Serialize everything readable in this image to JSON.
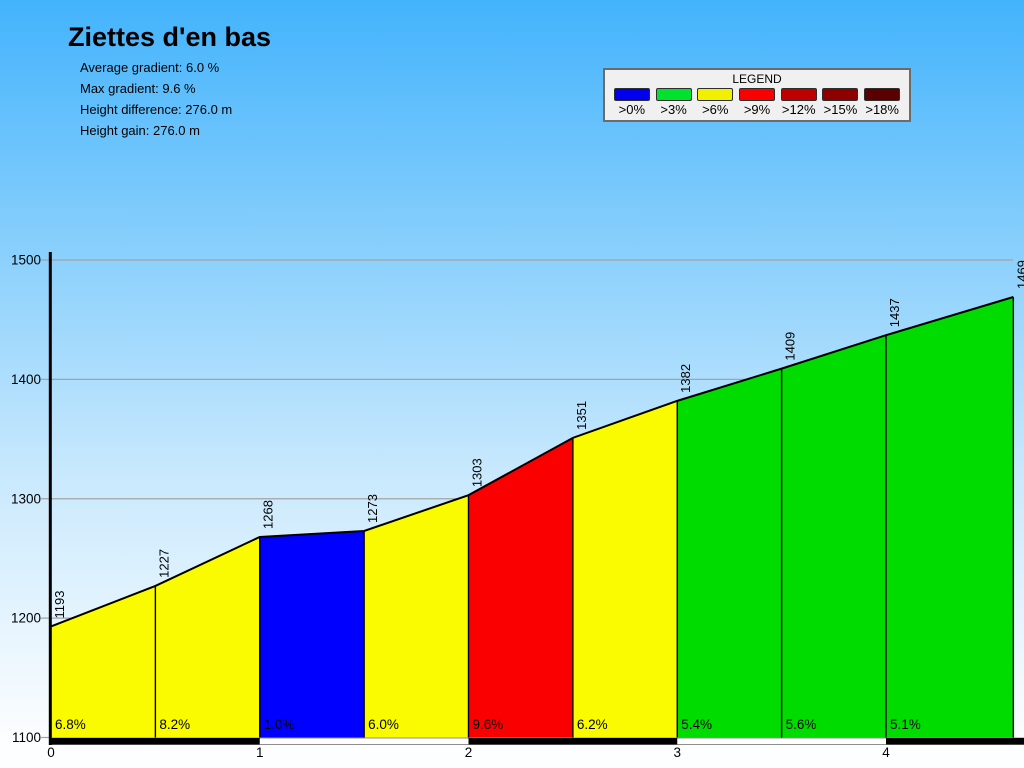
{
  "header": {
    "title": "Ziettes d'en bas",
    "stats": [
      "Average gradient: 6.0 %",
      "Max gradient: 9.6 %",
      "Height difference: 276.0 m",
      "Height gain: 276.0 m"
    ]
  },
  "legend": {
    "title": "LEGEND",
    "items": [
      {
        "label": ">0%",
        "color": "#0000EE"
      },
      {
        "label": ">3%",
        "color": "#00E22E"
      },
      {
        "label": ">6%",
        "color": "#F0F000"
      },
      {
        "label": ">9%",
        "color": "#FA0000"
      },
      {
        "label": ">12%",
        "color": "#BE0000"
      },
      {
        "label": ">15%",
        "color": "#8E0000"
      },
      {
        "label": ">18%",
        "color": "#5A0000"
      }
    ]
  },
  "chart_data": {
    "type": "area",
    "title": "Ziettes d'en bas",
    "x_km": [
      0,
      0.5,
      1,
      1.5,
      2,
      2.5,
      3,
      3.5,
      4,
      4.61
    ],
    "elevation_m": [
      1193,
      1227,
      1268,
      1273,
      1303,
      1351,
      1382,
      1409,
      1437,
      1469
    ],
    "point_labels": [
      "1193",
      "1227",
      "1268",
      "1273",
      "1303",
      "1351",
      "1382",
      "1409",
      "1437",
      "1469"
    ],
    "segments": [
      {
        "gradient_label": "6.8%",
        "color": "#FBFB00"
      },
      {
        "gradient_label": "8.2%",
        "color": "#FBFB00"
      },
      {
        "gradient_label": "1.0%",
        "color": "#0000FE"
      },
      {
        "gradient_label": "6.0%",
        "color": "#FBFB00"
      },
      {
        "gradient_label": "9.6%",
        "color": "#FB0000"
      },
      {
        "gradient_label": "6.2%",
        "color": "#FBFB00"
      },
      {
        "gradient_label": "5.4%",
        "color": "#00DC00"
      },
      {
        "gradient_label": "5.6%",
        "color": "#00DC00"
      },
      {
        "gradient_label": "5.1%",
        "color": "#00DC00"
      }
    ],
    "ylim": [
      1100,
      1500
    ],
    "yticks": [
      1500,
      1400,
      1300,
      1200,
      1100
    ],
    "xticks": [
      0,
      1,
      2,
      3,
      4
    ],
    "xlim_km": [
      0,
      4.61
    ],
    "grid": true,
    "outline_color": "#000000",
    "gridline_color": "#A4A4A4",
    "scalebar_colors": [
      "#000000",
      "#FFFFFF"
    ]
  }
}
